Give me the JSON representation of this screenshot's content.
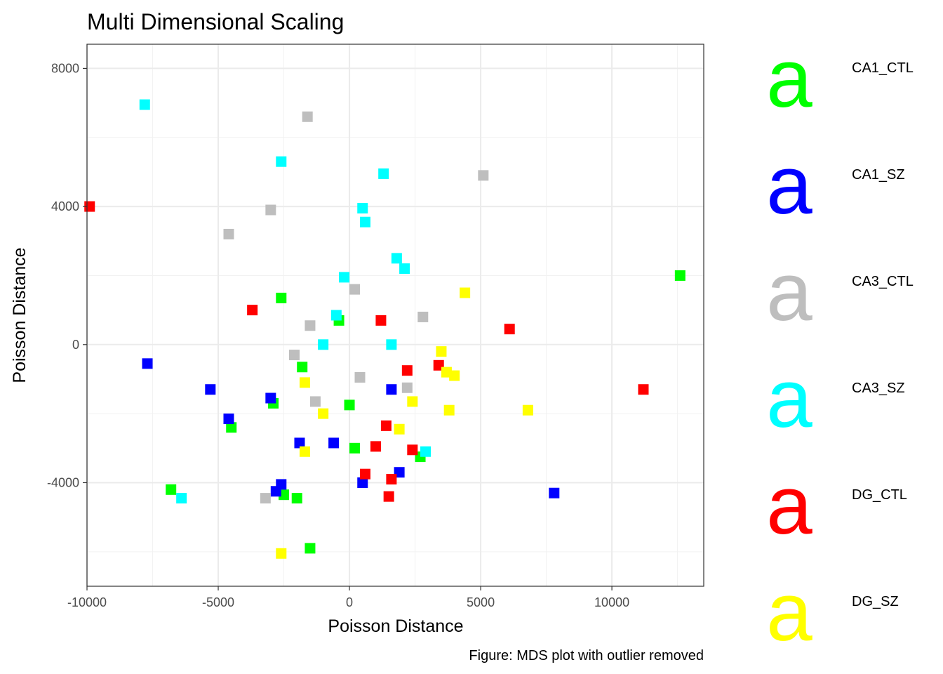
{
  "chart_data": {
    "type": "scatter",
    "title": "Multi Dimensional Scaling",
    "xlabel": "Poisson Distance",
    "ylabel": "Poisson Distance",
    "caption": "Figure: MDS plot with outlier removed",
    "xlim": [
      -10000,
      13500
    ],
    "ylim": [
      -7000,
      8700
    ],
    "xticks": [
      -10000,
      -5000,
      0,
      5000,
      10000
    ],
    "yticks": [
      -4000,
      0,
      4000,
      8000
    ],
    "xtick_labels": [
      "-10000",
      "-5000",
      "0",
      "5000",
      "10000"
    ],
    "ytick_labels": [
      "-4000",
      "0",
      "4000",
      "8000"
    ],
    "grid": true,
    "legend_position": "right",
    "legend_key_glyph": "a",
    "series": [
      {
        "name": "CA1_CTL",
        "color": "#00FF00",
        "points": [
          [
            12600,
            2000
          ],
          [
            -2600,
            1350
          ],
          [
            -400,
            700
          ],
          [
            -1800,
            -650
          ],
          [
            -2900,
            -1700
          ],
          [
            0,
            -1750
          ],
          [
            -4500,
            -2400
          ],
          [
            200,
            -3000
          ],
          [
            2700,
            -3250
          ],
          [
            -6800,
            -4200
          ],
          [
            -2500,
            -4350
          ],
          [
            -2000,
            -4450
          ],
          [
            -1500,
            -5900
          ]
        ]
      },
      {
        "name": "CA1_SZ",
        "color": "#0000FF",
        "points": [
          [
            -7700,
            -550
          ],
          [
            -5300,
            -1300
          ],
          [
            1600,
            -1300
          ],
          [
            -3000,
            -1550
          ],
          [
            -4600,
            -2150
          ],
          [
            -1900,
            -2850
          ],
          [
            -600,
            -2850
          ],
          [
            1900,
            -3700
          ],
          [
            500,
            -4000
          ],
          [
            -2600,
            -4050
          ],
          [
            -2800,
            -4250
          ],
          [
            7800,
            -4300
          ]
        ]
      },
      {
        "name": "CA3_CTL",
        "color": "#BEBEBE",
        "points": [
          [
            -1600,
            6600
          ],
          [
            5100,
            4900
          ],
          [
            -3000,
            3900
          ],
          [
            -4600,
            3200
          ],
          [
            200,
            1600
          ],
          [
            2800,
            800
          ],
          [
            -1500,
            550
          ],
          [
            -2100,
            -300
          ],
          [
            400,
            -950
          ],
          [
            2200,
            -1250
          ],
          [
            -1300,
            -1650
          ],
          [
            -3200,
            -4450
          ]
        ]
      },
      {
        "name": "CA3_SZ",
        "color": "#00FFFF",
        "points": [
          [
            -7800,
            6950
          ],
          [
            -2600,
            5300
          ],
          [
            1300,
            4950
          ],
          [
            500,
            3950
          ],
          [
            600,
            3550
          ],
          [
            1800,
            2500
          ],
          [
            2100,
            2200
          ],
          [
            -200,
            1950
          ],
          [
            -500,
            850
          ],
          [
            -1000,
            0
          ],
          [
            1600,
            0
          ],
          [
            2900,
            -3100
          ],
          [
            -6400,
            -4450
          ]
        ]
      },
      {
        "name": "DG_CTL",
        "color": "#FF0000",
        "points": [
          [
            -9900,
            4000
          ],
          [
            -3700,
            1000
          ],
          [
            1200,
            700
          ],
          [
            6100,
            450
          ],
          [
            3400,
            -600
          ],
          [
            2200,
            -750
          ],
          [
            11200,
            -1300
          ],
          [
            1400,
            -2350
          ],
          [
            1000,
            -2950
          ],
          [
            2400,
            -3050
          ],
          [
            600,
            -3750
          ],
          [
            1600,
            -3900
          ],
          [
            1500,
            -4400
          ]
        ]
      },
      {
        "name": "DG_SZ",
        "color": "#FFFF00",
        "points": [
          [
            4400,
            1500
          ],
          [
            3500,
            -200
          ],
          [
            3700,
            -800
          ],
          [
            4000,
            -900
          ],
          [
            -1700,
            -1100
          ],
          [
            2400,
            -1650
          ],
          [
            3800,
            -1900
          ],
          [
            6800,
            -1900
          ],
          [
            -1000,
            -2000
          ],
          [
            1900,
            -2450
          ],
          [
            -1700,
            -3100
          ],
          [
            -2600,
            -6050
          ]
        ]
      }
    ]
  }
}
